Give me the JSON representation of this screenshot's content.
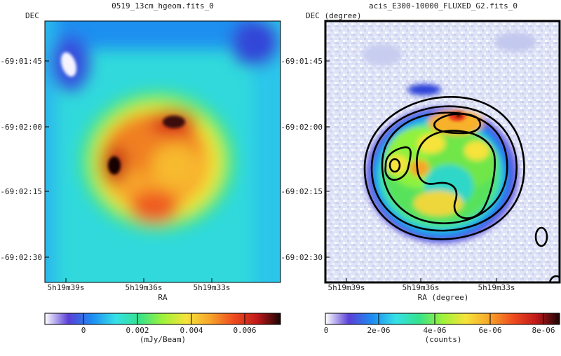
{
  "left_panel": {
    "title": "0519_13cm_hgeom.fits_0",
    "y_axis_label": "DEC",
    "x_axis_label": "RA",
    "dec_ticks": [
      "-69:01:45",
      "-69:02:00",
      "-69:02:15",
      "-69:02:30"
    ],
    "ra_ticks": [
      "5h19m39s",
      "5h19m36s",
      "5h19m33s"
    ],
    "colorbar": {
      "ticks": [
        "0",
        "0.002",
        "0.004",
        "0.006"
      ],
      "unit_label": "(mJy/Beam)",
      "colormap": [
        "#ffffff",
        "#5a3fd6",
        "#1d8cf2",
        "#35e0e8",
        "#35e28b",
        "#9ef23a",
        "#f6e33a",
        "#f7a52a",
        "#ef4d1e",
        "#c2191a",
        "#1a0505"
      ]
    }
  },
  "right_panel": {
    "title": "acis_E300-10000_FLUXED_G2.fits_0",
    "y_axis_label": "DEC (degree)",
    "x_axis_label": "RA (degree)",
    "dec_ticks": [
      "-69:01:45",
      "-69:02:00",
      "-69:02:15",
      "-69:02:30"
    ],
    "ra_ticks": [
      "5h19m39s",
      "5h19m36s",
      "5h19m33s"
    ],
    "colorbar": {
      "ticks": [
        "0",
        "2e-06",
        "4e-06",
        "6e-06",
        "8e-06"
      ],
      "unit_label": "(counts)",
      "colormap": [
        "#ffffff",
        "#5a3fd6",
        "#1d8cf2",
        "#35e0e8",
        "#35e28b",
        "#9ef23a",
        "#f6e33a",
        "#f7a52a",
        "#ef4d1e",
        "#c2191a",
        "#1a0505"
      ]
    },
    "contour_color": "#000000"
  }
}
